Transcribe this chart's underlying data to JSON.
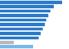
{
  "values": [
    90,
    78,
    73,
    70,
    67,
    65,
    62,
    59,
    56,
    20,
    48
  ],
  "bar_colors": [
    "#2b7bca",
    "#2b7bca",
    "#2b7bca",
    "#2b7bca",
    "#2b7bca",
    "#2b7bca",
    "#2b7bca",
    "#2b7bca",
    "#2b7bca",
    "#b8b8b8",
    "#7ab8e8"
  ],
  "xlim": [
    0,
    100
  ],
  "background_color": "#f5f5f5",
  "plot_bg": "#ffffff",
  "bar_height": 0.72,
  "figsize": [
    1.0,
    0.71
  ],
  "dpi": 100
}
